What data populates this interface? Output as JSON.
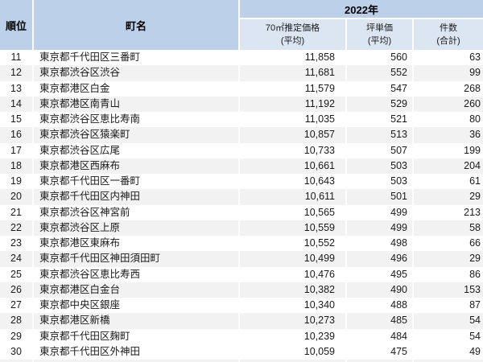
{
  "colors": {
    "header_blue": "#bdd0e9",
    "subheader_blue": "#dce6f2",
    "band_gray": "#f2f2f2",
    "text": "#1a1a1a"
  },
  "table": {
    "header": {
      "rank_label": "順位",
      "town_label": "町名",
      "year_label": "2022年",
      "price_label_line1": "70㎡推定価格",
      "price_label_line2": "(平均)",
      "tsubo_label_line1": "坪単価",
      "tsubo_label_line2": "(平均)",
      "count_label_line1": "件数",
      "count_label_line2": "(合計)"
    }
  },
  "chart_data": {
    "type": "table",
    "columns": [
      "順位",
      "町名",
      "2022年 70㎡推定価格(平均)",
      "2022年 坪単価(平均)",
      "2022年 件数(合計)"
    ],
    "rows": [
      {
        "rank": "11",
        "town": "東京都千代田区三番町",
        "price": "11,858",
        "tsubo": "560",
        "count": "63"
      },
      {
        "rank": "12",
        "town": "東京都渋谷区渋谷",
        "price": "11,681",
        "tsubo": "552",
        "count": "99"
      },
      {
        "rank": "13",
        "town": "東京都港区白金",
        "price": "11,579",
        "tsubo": "547",
        "count": "268"
      },
      {
        "rank": "14",
        "town": "東京都港区南青山",
        "price": "11,192",
        "tsubo": "529",
        "count": "260"
      },
      {
        "rank": "15",
        "town": "東京都渋谷区恵比寿南",
        "price": "11,035",
        "tsubo": "521",
        "count": "80"
      },
      {
        "rank": "16",
        "town": "東京都渋谷区猿楽町",
        "price": "10,857",
        "tsubo": "513",
        "count": "36"
      },
      {
        "rank": "17",
        "town": "東京都渋谷区広尾",
        "price": "10,733",
        "tsubo": "507",
        "count": "199"
      },
      {
        "rank": "18",
        "town": "東京都港区西麻布",
        "price": "10,661",
        "tsubo": "503",
        "count": "204"
      },
      {
        "rank": "19",
        "town": "東京都千代田区一番町",
        "price": "10,643",
        "tsubo": "503",
        "count": "61"
      },
      {
        "rank": "20",
        "town": "東京都千代田区内神田",
        "price": "10,611",
        "tsubo": "501",
        "count": "29"
      },
      {
        "rank": "21",
        "town": "東京都渋谷区神宮前",
        "price": "10,565",
        "tsubo": "499",
        "count": "213"
      },
      {
        "rank": "22",
        "town": "東京都渋谷区上原",
        "price": "10,559",
        "tsubo": "499",
        "count": "58"
      },
      {
        "rank": "23",
        "town": "東京都港区東麻布",
        "price": "10,552",
        "tsubo": "498",
        "count": "66"
      },
      {
        "rank": "24",
        "town": "東京都千代田区神田須田町",
        "price": "10,499",
        "tsubo": "496",
        "count": "29"
      },
      {
        "rank": "25",
        "town": "東京都渋谷区恵比寿西",
        "price": "10,476",
        "tsubo": "495",
        "count": "86"
      },
      {
        "rank": "26",
        "town": "東京都港区白金台",
        "price": "10,382",
        "tsubo": "490",
        "count": "153"
      },
      {
        "rank": "27",
        "town": "東京都中央区銀座",
        "price": "10,340",
        "tsubo": "488",
        "count": "87"
      },
      {
        "rank": "28",
        "town": "東京都港区新橋",
        "price": "10,273",
        "tsubo": "485",
        "count": "54"
      },
      {
        "rank": "29",
        "town": "東京都千代田区麹町",
        "price": "10,239",
        "tsubo": "484",
        "count": "54"
      },
      {
        "rank": "30",
        "town": "東京都千代田区外神田",
        "price": "10,059",
        "tsubo": "475",
        "count": "49"
      }
    ]
  }
}
